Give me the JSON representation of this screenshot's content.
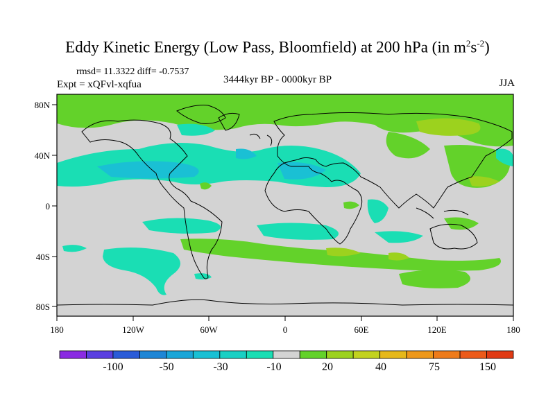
{
  "title": {
    "main": "Eddy Kinetic Energy (Low Pass, Bloomfield) at 200 hPa (in m",
    "sup1": "2",
    "mid": "s",
    "sup2": "-2",
    "end": ")"
  },
  "stats": "rmsd= 11.3322 diff= -0.7537",
  "expt": "Expt = xQFvl-xqfua",
  "period": "3444kyr BP - 0000kyr BP",
  "season": "JJA",
  "lat_labels": [
    "80N",
    "40N",
    "0",
    "40S",
    "80S"
  ],
  "lon_labels": [
    "180",
    "120W",
    "60W",
    "0",
    "60E",
    "120E",
    "180"
  ],
  "colorbar": {
    "colors": [
      "#8a2be2",
      "#5a3fe0",
      "#2a5bd8",
      "#1e86d6",
      "#1aa6d8",
      "#19c0d4",
      "#1ad0c4",
      "#1adeb4",
      "#d3d3d3",
      "#63d22a",
      "#9cd21e",
      "#c2d21e",
      "#e6b81a",
      "#ee981a",
      "#ee7b1a",
      "#ec5a1a",
      "#e03a14"
    ],
    "labels": [
      "-100",
      "-50",
      "-30",
      "-10",
      "20",
      "40",
      "75",
      "150"
    ]
  },
  "colors": {
    "land_gray": "#d3d3d3",
    "green": "#63d22a",
    "light_green": "#9cd21e",
    "cyan": "#1adeb4",
    "blue": "#1aa6d8"
  }
}
